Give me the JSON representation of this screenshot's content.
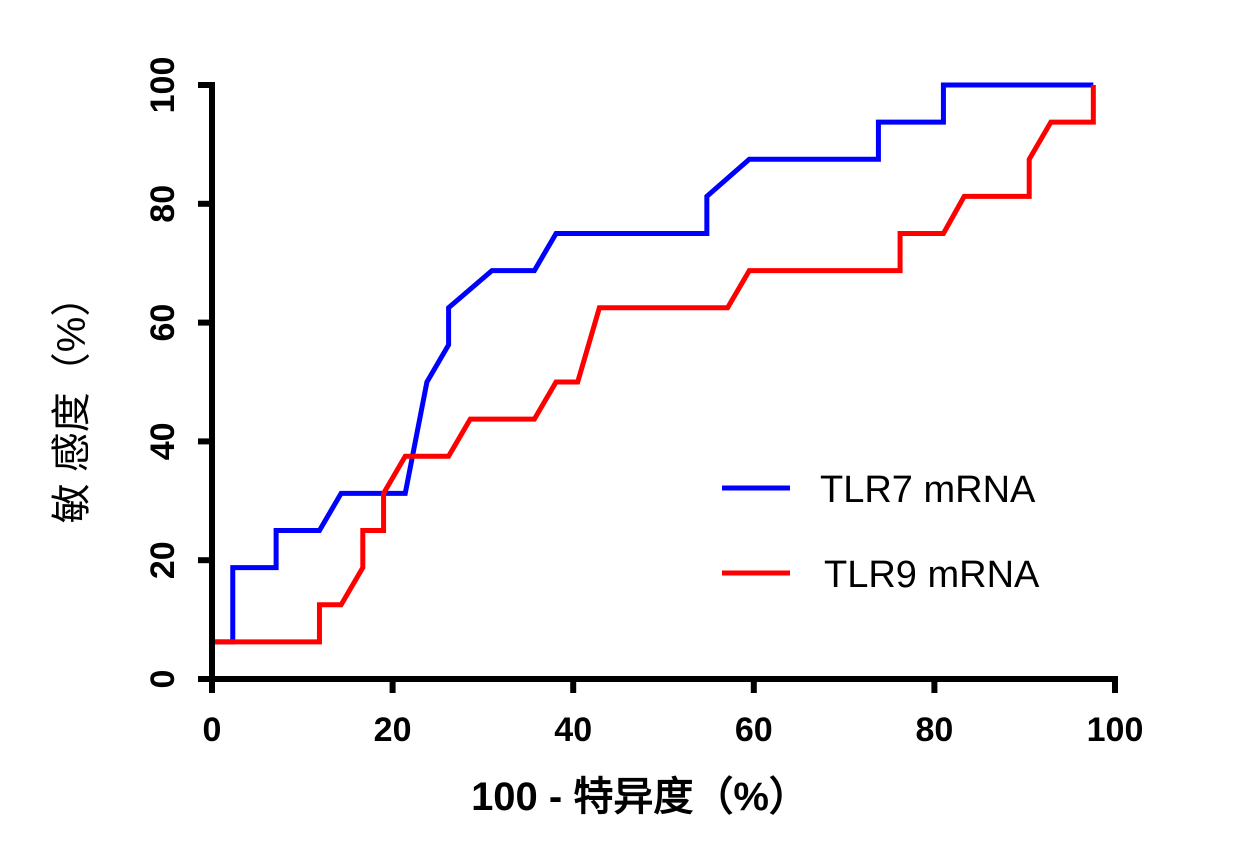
{
  "chart_data": {
    "type": "line",
    "title": "",
    "xlabel": "100 - 特异度（%）",
    "ylabel": "敏 感度（%）",
    "xlim": [
      0,
      100
    ],
    "ylim": [
      0,
      100
    ],
    "xticks": [
      "0",
      "20",
      "40",
      "60",
      "80",
      "100"
    ],
    "yticks": [
      "0",
      "20",
      "40",
      "60",
      "80",
      "100"
    ],
    "grid": false,
    "legend_position": "bottom-right",
    "series": [
      {
        "name": "TLR7 mRNA",
        "color": "#0000ff",
        "points": [
          [
            0,
            6.25
          ],
          [
            2.3,
            6.25
          ],
          [
            2.3,
            18.75
          ],
          [
            7.1,
            18.75
          ],
          [
            7.1,
            25
          ],
          [
            11.9,
            25
          ],
          [
            14.3,
            31.25
          ],
          [
            21.4,
            31.25
          ],
          [
            23.8,
            50
          ],
          [
            26.2,
            56.25
          ],
          [
            26.2,
            62.5
          ],
          [
            31,
            68.75
          ],
          [
            35.7,
            68.75
          ],
          [
            38.1,
            75
          ],
          [
            54.8,
            75
          ],
          [
            54.8,
            81.25
          ],
          [
            59.5,
            87.5
          ],
          [
            73.8,
            87.5
          ],
          [
            73.8,
            93.75
          ],
          [
            81,
            93.75
          ],
          [
            81,
            100
          ],
          [
            97.6,
            100
          ]
        ]
      },
      {
        "name": "TLR9 mRNA",
        "color": "#ff0000",
        "points": [
          [
            0,
            6.25
          ],
          [
            11.9,
            6.25
          ],
          [
            11.9,
            12.5
          ],
          [
            14.3,
            12.5
          ],
          [
            16.7,
            18.75
          ],
          [
            16.7,
            25
          ],
          [
            19,
            25
          ],
          [
            19,
            31.25
          ],
          [
            21.4,
            37.5
          ],
          [
            26.2,
            37.5
          ],
          [
            28.6,
            43.75
          ],
          [
            35.7,
            43.75
          ],
          [
            38.1,
            50
          ],
          [
            40.5,
            50
          ],
          [
            42.9,
            62.5
          ],
          [
            57.1,
            62.5
          ],
          [
            59.5,
            68.75
          ],
          [
            76.2,
            68.75
          ],
          [
            76.2,
            75
          ],
          [
            81,
            75
          ],
          [
            83.3,
            81.25
          ],
          [
            90.5,
            81.25
          ],
          [
            90.5,
            87.5
          ],
          [
            92.9,
            93.75
          ],
          [
            97.6,
            93.75
          ],
          [
            97.6,
            100
          ]
        ]
      }
    ]
  }
}
